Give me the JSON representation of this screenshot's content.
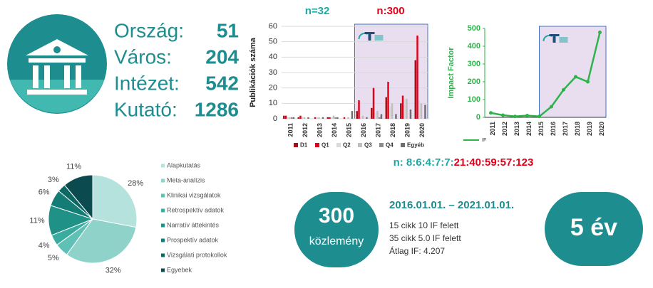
{
  "stats": [
    {
      "label": "Ország:",
      "value": 51
    },
    {
      "label": "Város:",
      "value": 204
    },
    {
      "label": "Intézet:",
      "value": 542
    },
    {
      "label": "Kutató:",
      "value": 1286
    }
  ],
  "counts": {
    "left": "n=32",
    "right": "n:300"
  },
  "ratio": {
    "left": "n: 8:6:4:7:7:",
    "right": "21:40:59:57:123"
  },
  "summary": {
    "count": "300",
    "count_label": "közlemény",
    "period": "2016.01.01. – 2021.01.01.",
    "lines": [
      "15 cikk 10 IF felett",
      "35 cikk 5.0 IF felett",
      "Átlag IF: 4.207"
    ],
    "duration": "5 év"
  },
  "chart_data": [
    {
      "type": "bar",
      "y_label": "Publikációk száma",
      "categories": [
        "2011",
        "2012",
        "2013",
        "2014",
        "2015",
        "2016",
        "2017",
        "2018",
        "2019",
        "2020"
      ],
      "series": [
        {
          "name": "D1",
          "color": "#a50f15",
          "values": [
            2,
            1,
            0,
            1,
            0,
            5,
            7,
            14,
            10,
            38
          ]
        },
        {
          "name": "Q1",
          "color": "#e3001b",
          "values": [
            2,
            2,
            1,
            1,
            1,
            12,
            20,
            24,
            15,
            54
          ]
        },
        {
          "name": "Q2",
          "color": "#d9d9d9",
          "values": [
            1,
            1,
            1,
            1,
            0,
            1,
            4,
            8,
            13,
            12
          ]
        },
        {
          "name": "Q3",
          "color": "#bfbfbf",
          "values": [
            1,
            1,
            1,
            2,
            1,
            2,
            5,
            10,
            13,
            10
          ]
        },
        {
          "name": "Q4",
          "color": "#8c8c8c",
          "values": [
            1,
            0,
            0,
            1,
            0,
            0,
            1,
            0,
            0,
            0
          ]
        },
        {
          "name": "Egyéb",
          "color": "#6e6e6e",
          "values": [
            1,
            1,
            1,
            1,
            5,
            1,
            3,
            3,
            6,
            9
          ]
        }
      ],
      "ylim": [
        0,
        60
      ],
      "yticks": [
        0,
        10,
        20,
        30,
        40,
        50,
        60
      ],
      "grid": true
    },
    {
      "type": "line",
      "y_label": "Impact Factor",
      "categories": [
        "2011",
        "2012",
        "2013",
        "2014",
        "2015",
        "2016",
        "2017",
        "2018",
        "2019",
        "2020"
      ],
      "series": [
        {
          "name": "IF",
          "color": "#2db34a",
          "values": [
            25,
            12,
            5,
            10,
            5,
            60,
            155,
            228,
            200,
            478
          ]
        }
      ],
      "ylim": [
        0,
        500
      ],
      "yticks": [
        0,
        100,
        200,
        300,
        400,
        500
      ]
    },
    {
      "type": "pie",
      "categories": [
        "Alapkutatás",
        "Meta-analízis",
        "Klinikai vizsgálatok",
        "Retrospektív adatok",
        "Narratív áttekintés",
        "Prospektív adatok",
        "Vizsgálati protokollok",
        "Egyebek"
      ],
      "values": [
        28,
        32,
        5,
        4,
        11,
        6,
        3,
        11
      ],
      "value_labels": [
        "28%",
        "32%",
        "5%",
        "4%",
        "11%",
        "6%",
        "3%",
        "11%"
      ],
      "colors": [
        "#b5e2dd",
        "#8ed2ca",
        "#5fc1b6",
        "#3aab9f",
        "#1f9187",
        "#137c74",
        "#0d6763",
        "#0b4b4f"
      ]
    }
  ]
}
